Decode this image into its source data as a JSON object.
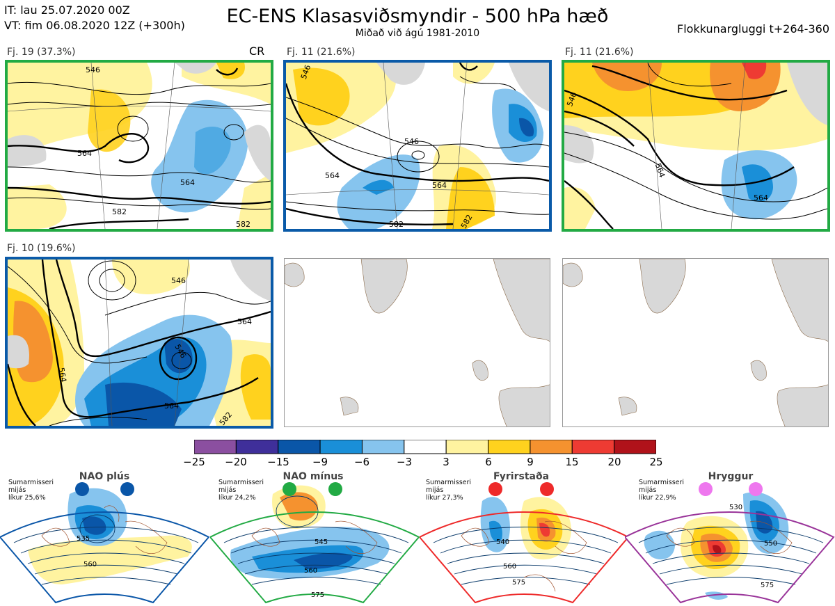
{
  "header": {
    "it_line": "IT: lau 25.07.2020 00Z",
    "vt_line": "VT: fim 06.08.2020 12Z  (+300h)",
    "title": "EC-ENS Klasasviðsmyndir - 500 hPa hæð",
    "subtitle": "Miðað við ágú 1981-2010",
    "window": "Flokkunargluggi t+264-360"
  },
  "cr_label": "CR",
  "panels": [
    {
      "label": "Fj. 19 (37.3%)",
      "frame_color": "#22aa44",
      "contours": [
        "546",
        "564",
        "564",
        "582",
        "582"
      ]
    },
    {
      "label": "Fj. 11 (21.6%)",
      "frame_color": "#0a5aa8",
      "contours": [
        "546",
        "546",
        "564",
        "564",
        "582",
        "582"
      ]
    },
    {
      "label": "Fj. 11 (21.6%)",
      "frame_color": "#22aa44",
      "contours": [
        "546",
        "564",
        "564"
      ]
    },
    {
      "label": "Fj. 10 (19.6%)",
      "frame_color": "#0a5aa8",
      "contours": [
        "546",
        "546",
        "564",
        "564",
        "564",
        "582"
      ]
    }
  ],
  "colorbar": {
    "colors": [
      "#8b4fa0",
      "#3f2f9a",
      "#0a56a8",
      "#1a8fd8",
      "#86c4ee",
      "#ffffff",
      "#fff3a0",
      "#ffd21e",
      "#f5922f",
      "#ee3b33",
      "#b0121a"
    ],
    "labels": [
      "−25",
      "−20",
      "−15",
      "−9",
      "−6",
      "−3",
      "3",
      "6",
      "9",
      "15",
      "20",
      "25"
    ]
  },
  "regimes": [
    {
      "name": "NAO plús",
      "note": [
        "Sumarmisseri",
        "mijás",
        "líkur 25,6%"
      ],
      "dot_color": "#0a56a8",
      "frame_color": "#0a56a8",
      "contours": [
        "535",
        "560"
      ]
    },
    {
      "name": "NAO mínus",
      "note": [
        "Sumarmisseri",
        "mijás",
        "líkur 24,2%"
      ],
      "dot_color": "#22aa44",
      "frame_color": "#22aa44",
      "contours": [
        "545",
        "560",
        "575"
      ]
    },
    {
      "name": "Fyrirstaða",
      "note": [
        "Sumarmisseri",
        "mijás",
        "líkur 27,3%"
      ],
      "dot_color": "#ee2a2a",
      "frame_color": "#ee2a2a",
      "contours": [
        "540",
        "560",
        "575"
      ]
    },
    {
      "name": "Hryggur",
      "note": [
        "Sumarmisseri",
        "mijás",
        "líkur 22,9%"
      ],
      "dot_color": "#ee77ee",
      "frame_color": "#993399",
      "contours": [
        "530",
        "550",
        "575"
      ]
    }
  ]
}
